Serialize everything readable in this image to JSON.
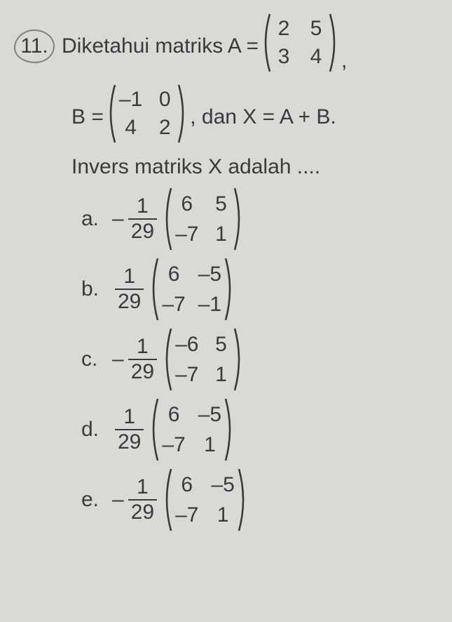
{
  "question": {
    "number": "11.",
    "line1_pre": "Diketahui matriks  A =",
    "A": [
      [
        "2",
        "5"
      ],
      [
        "3",
        "4"
      ]
    ],
    "line2_pre": "B =",
    "B": [
      [
        "–1",
        "0"
      ],
      [
        "4",
        "2"
      ]
    ],
    "line2_post": ",  dan X = A + B.",
    "line3": "Invers matriks X adalah ....",
    "options": [
      {
        "label": "a.",
        "neg": "–",
        "frac_num": "1",
        "frac_den": "29",
        "m": [
          [
            "6",
            "5"
          ],
          [
            "–7",
            "1"
          ]
        ]
      },
      {
        "label": "b.",
        "neg": "",
        "frac_num": "1",
        "frac_den": "29",
        "m": [
          [
            "6",
            "–5"
          ],
          [
            "–7",
            "–1"
          ]
        ]
      },
      {
        "label": "c.",
        "neg": "–",
        "frac_num": "1",
        "frac_den": "29",
        "m": [
          [
            "–6",
            "5"
          ],
          [
            "–7",
            "1"
          ]
        ]
      },
      {
        "label": "d.",
        "neg": "",
        "frac_num": "1",
        "frac_den": "29",
        "m": [
          [
            "6",
            "–5"
          ],
          [
            "–7",
            "1"
          ]
        ]
      },
      {
        "label": "e.",
        "neg": "–",
        "frac_num": "1",
        "frac_den": "29",
        "m": [
          [
            "6",
            "–5"
          ],
          [
            "–7",
            "1"
          ]
        ]
      }
    ]
  },
  "style": {
    "matrix_height_main": 86,
    "matrix_height_opt": 92,
    "paren_stroke": "#3a3a38",
    "paren_width": 2.6
  }
}
